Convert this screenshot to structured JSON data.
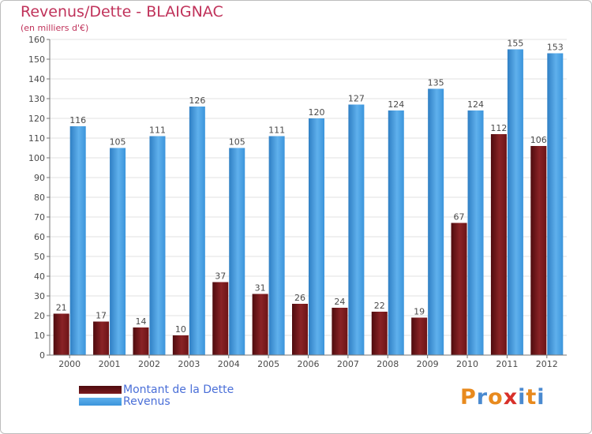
{
  "header": {
    "title": "Revenus/Dette - BLAIGNAC",
    "subtitle": "(en milliers d'€)"
  },
  "colors": {
    "title": "#c0325a",
    "dette": "#7a1a1e",
    "revenus": "#3b95dc",
    "legend_text": "#4a6fd8",
    "grid": "#e2e2e2"
  },
  "logo": {
    "text": "Proxiti",
    "letters": [
      "P",
      "r",
      "o",
      "x",
      "i",
      "t",
      "i"
    ],
    "letter_colors": [
      "#e88a1e",
      "#4a8ad0",
      "#e88a1e",
      "#d8302a",
      "#4a8ad0",
      "#e88a1e",
      "#4a8ad0"
    ]
  },
  "chart_data": {
    "type": "bar",
    "title": "Revenus/Dette - BLAIGNAC",
    "subtitle": "(en milliers d'€)",
    "xlabel": "",
    "ylabel": "",
    "ylim": [
      0,
      160
    ],
    "yticks": [
      0,
      10,
      20,
      30,
      40,
      50,
      60,
      70,
      80,
      90,
      100,
      110,
      120,
      130,
      140,
      150,
      160
    ],
    "grid": true,
    "legend_position": "bottom-left",
    "categories": [
      "2000",
      "2001",
      "2002",
      "2003",
      "2004",
      "2005",
      "2006",
      "2007",
      "2008",
      "2009",
      "2010",
      "2011",
      "2012"
    ],
    "series": [
      {
        "name": "Montant de la Dette",
        "color": "#7a1a1e",
        "values": [
          21,
          17,
          14,
          10,
          37,
          31,
          26,
          24,
          22,
          19,
          67,
          112,
          106
        ]
      },
      {
        "name": "Revenus",
        "color": "#3b95dc",
        "values": [
          116,
          105,
          111,
          126,
          105,
          111,
          120,
          127,
          124,
          135,
          124,
          155,
          153
        ]
      }
    ]
  }
}
